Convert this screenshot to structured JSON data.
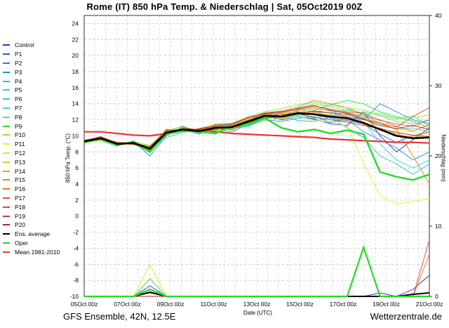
{
  "title": "Rome  (IT)  850 hPa Temp. & Niederschlag | Sat, 05Oct2019 00Z",
  "footer_left": "GFS Ensemble, 42N, 12.5E",
  "footer_right": "Wetterzentrale.de",
  "chart_data": {
    "type": "line",
    "xlabel": "Date (UTC)",
    "ylabel": "850 hPa Temp. (°C)",
    "ylabel_right": "Niederschlag (mm)",
    "x_ticks": [
      "05Oct 00z",
      "07Oct 00z",
      "09Oct 00z",
      "11Oct 00z",
      "13Oct 00z",
      "15Oct 00z",
      "17Oct 00z",
      "19Oct 00z",
      "21Oct 00z"
    ],
    "y_ticks": [
      "-10",
      "-8",
      "-6",
      "-4",
      "-2",
      "0",
      "2",
      "4",
      "6",
      "8",
      "10",
      "12",
      "14",
      "16",
      "18",
      "20",
      "22",
      "24"
    ],
    "y_right_ticks": [
      "0",
      "10",
      "20",
      "30",
      "40"
    ],
    "ylim": [
      -10,
      25
    ],
    "ylim_right": [
      0,
      40
    ],
    "grid": true,
    "legend_position": "left",
    "series": [
      {
        "name": "Control",
        "color": "#3333cc",
        "temp": [
          9.3,
          9.6,
          8.8,
          9.2,
          7.9,
          10.6,
          10.9,
          10.4,
          11.0,
          10.8,
          11.6,
          12.5,
          12.0,
          12.4,
          12.1,
          11.5,
          11.3,
          13.0,
          10.0,
          8.0,
          9.5,
          11.0
        ],
        "precip": [
          0,
          0,
          0,
          0,
          1.5,
          0,
          0,
          0,
          0,
          0,
          0,
          0,
          0,
          0,
          0,
          0,
          0,
          0,
          0.5,
          0,
          1,
          3
        ]
      },
      {
        "name": "P1",
        "color": "#3355dd",
        "temp": [
          9.3,
          9.6,
          9.0,
          9.0,
          8.5,
          10.3,
          10.7,
          10.5,
          11.2,
          11.0,
          12.0,
          12.8,
          12.5,
          13.0,
          12.6,
          12.2,
          11.9,
          11.5,
          10.2,
          9.2,
          10.0,
          10.5
        ],
        "precip": [
          0,
          0,
          0,
          0,
          0.5,
          0,
          0,
          0,
          0,
          0,
          0,
          0,
          0,
          0,
          0,
          0,
          0,
          0,
          0,
          0,
          0,
          0
        ]
      },
      {
        "name": "P2",
        "color": "#3377ee",
        "temp": [
          9.4,
          9.8,
          8.9,
          9.1,
          8.2,
          10.5,
          10.8,
          10.2,
          11.1,
          11.2,
          11.8,
          12.3,
          12.4,
          12.8,
          13.1,
          12.9,
          12.7,
          12.0,
          14.0,
          13.0,
          12.0,
          11.5
        ],
        "precip": [
          0,
          0,
          0,
          0,
          0,
          0,
          0,
          0,
          0,
          0,
          0,
          0,
          0,
          0,
          0,
          0,
          0,
          0,
          0,
          0,
          0,
          0
        ]
      },
      {
        "name": "P3",
        "color": "#1199dd",
        "temp": [
          9.2,
          9.5,
          8.8,
          9.3,
          7.5,
          10.0,
          11.0,
          10.6,
          10.8,
          10.5,
          11.5,
          12.0,
          11.8,
          12.2,
          12.4,
          11.7,
          12.1,
          10.5,
          9.5,
          8.5,
          7.0,
          8.0
        ],
        "precip": [
          0,
          0,
          0,
          0,
          0,
          0,
          0,
          0,
          0,
          0,
          0,
          0,
          0,
          0,
          0,
          0,
          0,
          0,
          0,
          0,
          0,
          0
        ]
      },
      {
        "name": "P4",
        "color": "#22bbdd",
        "temp": [
          9.5,
          9.7,
          9.1,
          9.0,
          8.0,
          10.4,
          10.6,
          10.8,
          11.3,
          10.9,
          11.2,
          12.1,
          12.6,
          11.9,
          11.8,
          12.3,
          11.0,
          9.8,
          7.5,
          6.5,
          5.2,
          6.5
        ],
        "precip": [
          0,
          0,
          0,
          0,
          0,
          0,
          0,
          0,
          0,
          0,
          0,
          0,
          0,
          0,
          0,
          0,
          0,
          0,
          0,
          0,
          0,
          0
        ]
      },
      {
        "name": "P5",
        "color": "#33ccdd",
        "temp": [
          9.1,
          9.4,
          8.7,
          9.4,
          8.3,
          9.8,
          10.4,
          10.9,
          10.6,
          11.1,
          11.4,
          11.9,
          12.2,
          12.5,
          12.0,
          11.6,
          12.4,
          11.8,
          9.0,
          7.0,
          6.0,
          7.0
        ],
        "precip": [
          0,
          0,
          0,
          0,
          0,
          0,
          0,
          0,
          0,
          0,
          0,
          0,
          0,
          0,
          0,
          0,
          0,
          0,
          0,
          0,
          0,
          0
        ]
      },
      {
        "name": "P6",
        "color": "#33ccbb",
        "temp": [
          9.3,
          9.9,
          9.2,
          8.9,
          8.6,
          10.2,
          11.1,
          10.3,
          11.4,
          11.5,
          12.2,
          12.7,
          13.0,
          12.7,
          12.2,
          12.6,
          12.8,
          12.3,
          11.5,
          10.8,
          11.0,
          10.5
        ],
        "precip": [
          0,
          0,
          0,
          0,
          0,
          0,
          0,
          0,
          0,
          0,
          0,
          0,
          0,
          0,
          0,
          0,
          0,
          0,
          0,
          0,
          0,
          0
        ]
      },
      {
        "name": "P7",
        "color": "#44ddaa",
        "temp": [
          9.4,
          9.5,
          9.0,
          9.2,
          8.4,
          10.8,
          10.5,
          10.7,
          10.9,
          11.3,
          11.7,
          12.4,
          12.9,
          13.3,
          13.0,
          12.8,
          13.3,
          12.8,
          12.5,
          11.8,
          11.5,
          12.0
        ],
        "precip": [
          0,
          0,
          0,
          0,
          0,
          0,
          0,
          0,
          0,
          0,
          0,
          0,
          0,
          0,
          0,
          0,
          0,
          0,
          0,
          0,
          0,
          0
        ]
      },
      {
        "name": "P8",
        "color": "#44ee88",
        "temp": [
          9.2,
          9.8,
          8.9,
          9.1,
          8.1,
          10.1,
          10.9,
          10.6,
          11.0,
          10.7,
          11.9,
          12.6,
          12.7,
          13.5,
          14.0,
          13.6,
          13.2,
          12.9,
          12.8,
          12.2,
          12.5,
          11.2
        ],
        "precip": [
          0,
          0,
          0,
          0,
          0,
          0,
          0,
          0,
          0,
          0,
          0,
          0,
          0,
          0,
          0,
          0,
          0,
          0,
          0,
          0,
          0,
          0
        ]
      },
      {
        "name": "P9",
        "color": "#22dd22",
        "temp": [
          9.3,
          9.7,
          9.1,
          9.0,
          8.7,
          10.6,
          11.2,
          10.4,
          10.7,
          11.0,
          11.3,
          12.2,
          12.3,
          12.6,
          13.2,
          13.9,
          14.4,
          14.0,
          13.0,
          12.4,
          11.8,
          11.0
        ],
        "precip": [
          0,
          0,
          0,
          0,
          2.5,
          0,
          0,
          0,
          0,
          0,
          0,
          0,
          0,
          0,
          0,
          0,
          0,
          0,
          0,
          0,
          0,
          0
        ]
      },
      {
        "name": "P10",
        "color": "#88ee22",
        "temp": [
          9.5,
          9.6,
          8.8,
          9.3,
          8.8,
          10.7,
          10.6,
          10.9,
          11.5,
          11.6,
          12.4,
          13.0,
          13.4,
          13.9,
          14.2,
          13.8,
          13.5,
          13.2,
          12.6,
          12.1,
          12.3,
          12.6
        ],
        "precip": [
          0,
          0,
          0,
          0,
          0,
          0,
          0,
          0,
          0,
          0,
          0,
          0,
          0,
          0,
          0,
          0,
          0,
          0,
          0,
          0,
          0,
          0
        ]
      },
      {
        "name": "P11",
        "color": "#eeee22",
        "temp": [
          9.1,
          9.4,
          9.0,
          9.2,
          8.2,
          10.3,
          10.8,
          10.5,
          10.6,
          10.9,
          11.6,
          12.0,
          12.1,
          12.4,
          11.9,
          11.8,
          11.2,
          6.5,
          2.5,
          1.5,
          1.8,
          2.2
        ],
        "precip": [
          0,
          0,
          0,
          0,
          0,
          0,
          0,
          0,
          0,
          0,
          0,
          0,
          0,
          0,
          0,
          0,
          0,
          0,
          0,
          0,
          0,
          0
        ]
      },
      {
        "name": "P12",
        "color": "#eedd22",
        "temp": [
          9.4,
          9.9,
          9.2,
          9.0,
          8.5,
          10.5,
          10.7,
          10.8,
          11.2,
          11.4,
          12.1,
          12.5,
          12.8,
          13.1,
          12.9,
          12.4,
          12.0,
          11.8,
          11.3,
          10.9,
          10.5,
          10.2
        ],
        "precip": [
          0,
          0,
          0,
          0,
          4.5,
          0,
          0,
          0,
          0,
          0,
          0,
          0,
          0,
          0,
          0,
          0,
          0,
          0,
          0,
          0,
          0,
          0
        ]
      },
      {
        "name": "P13",
        "color": "#ddcc22",
        "temp": [
          9.2,
          9.5,
          8.8,
          9.1,
          8.0,
          10.2,
          11.0,
          10.3,
          10.9,
          11.1,
          11.5,
          12.3,
          12.6,
          12.9,
          13.4,
          12.7,
          12.3,
          11.4,
          10.8,
          10.5,
          10.0,
          9.8
        ],
        "precip": [
          0,
          0,
          0,
          0,
          0,
          0,
          0,
          0,
          0,
          0,
          0,
          0,
          0,
          0,
          0,
          0,
          0,
          0,
          0,
          0,
          0,
          0
        ]
      },
      {
        "name": "P14",
        "color": "#ddaa11",
        "temp": [
          9.3,
          9.6,
          9.0,
          9.3,
          8.3,
          10.4,
          10.5,
          10.9,
          11.3,
          11.0,
          11.8,
          12.4,
          12.2,
          12.7,
          13.0,
          12.5,
          12.6,
          12.2,
          11.0,
          10.2,
          9.8,
          10.5
        ],
        "precip": [
          0,
          0,
          0,
          0,
          0,
          0,
          0,
          0,
          0,
          0,
          0,
          0,
          0,
          0,
          0,
          0,
          0,
          0,
          0,
          0,
          0,
          0
        ]
      },
      {
        "name": "P15",
        "color": "#dd8811",
        "temp": [
          9.5,
          9.7,
          9.1,
          8.9,
          8.6,
          10.7,
          10.8,
          10.5,
          11.1,
          11.4,
          12.2,
          12.9,
          13.1,
          13.6,
          14.4,
          14.0,
          13.5,
          12.6,
          11.6,
          10.8,
          7.5,
          4.0
        ],
        "precip": [
          0,
          0,
          0,
          0,
          0,
          0,
          0,
          0,
          0,
          0,
          0,
          0,
          0,
          0,
          0,
          0,
          0,
          0,
          0,
          0,
          0,
          0
        ]
      },
      {
        "name": "P16",
        "color": "#dd7722",
        "temp": [
          9.1,
          9.8,
          8.9,
          9.2,
          8.4,
          10.0,
          11.1,
          10.7,
          10.8,
          11.2,
          11.9,
          12.6,
          12.5,
          13.2,
          13.5,
          13.1,
          12.9,
          12.5,
          12.0,
          11.2,
          10.6,
          11.4
        ],
        "precip": [
          0,
          0,
          0,
          0,
          0,
          0,
          0,
          0,
          0,
          0,
          0,
          0,
          0,
          0,
          0,
          0,
          0,
          0,
          0,
          0,
          0,
          6
        ]
      },
      {
        "name": "P17",
        "color": "#dd5522",
        "temp": [
          9.4,
          9.5,
          9.0,
          9.0,
          8.1,
          10.6,
          10.6,
          10.6,
          11.4,
          11.3,
          12.0,
          12.7,
          12.9,
          13.3,
          13.7,
          13.3,
          13.0,
          12.8,
          11.9,
          11.5,
          11.2,
          12.0
        ],
        "precip": [
          0,
          0,
          0,
          0,
          0,
          0,
          0,
          0,
          0,
          0,
          0,
          0,
          0,
          0,
          0,
          0,
          0,
          0,
          0,
          0,
          0,
          0
        ]
      },
      {
        "name": "P18",
        "color": "#dd4433",
        "temp": [
          9.2,
          9.7,
          9.2,
          9.1,
          8.7,
          10.3,
          10.9,
          10.8,
          11.0,
          10.8,
          11.7,
          12.2,
          12.4,
          12.9,
          13.0,
          12.9,
          12.4,
          12.0,
          11.6,
          11.1,
          12.4,
          13.5
        ],
        "precip": [
          0,
          0,
          0,
          0,
          0,
          0,
          0,
          0,
          0,
          0,
          0,
          0,
          0,
          0,
          0,
          0,
          0,
          0,
          0,
          0,
          0,
          8
        ]
      },
      {
        "name": "P19",
        "color": "#cc3344",
        "temp": [
          9.3,
          9.6,
          8.8,
          9.3,
          8.2,
          10.5,
          10.7,
          10.4,
          10.9,
          11.1,
          11.6,
          12.5,
          12.7,
          12.8,
          12.3,
          12.0,
          11.7,
          11.3,
          10.9,
          10.4,
          10.1,
          9.9
        ],
        "precip": [
          0,
          0,
          0,
          0,
          0,
          0,
          0,
          0,
          0,
          0,
          0,
          0,
          0,
          0,
          0,
          0,
          0,
          0,
          0,
          0,
          0,
          0
        ]
      },
      {
        "name": "P20",
        "color": "#aa2233",
        "temp": [
          9.4,
          9.9,
          9.1,
          9.0,
          8.5,
          10.8,
          10.5,
          10.9,
          11.2,
          11.5,
          12.3,
          12.8,
          13.0,
          13.4,
          13.8,
          13.2,
          12.8,
          12.1,
          11.3,
          10.9,
          11.3,
          10.8
        ],
        "precip": [
          0,
          0,
          0,
          0,
          0,
          0,
          0,
          0,
          0,
          0,
          0,
          0,
          0,
          0,
          0,
          0,
          0,
          0,
          0,
          0,
          0,
          0
        ]
      },
      {
        "name": "Ens. average",
        "color": "#000000",
        "temp": [
          9.3,
          9.7,
          9.0,
          9.1,
          8.4,
          10.4,
          10.8,
          10.6,
          11.0,
          11.1,
          11.8,
          12.5,
          12.4,
          12.8,
          12.7,
          12.4,
          12.2,
          11.6,
          10.8,
          10.0,
          9.7,
          9.8
        ],
        "precip": [
          0,
          0,
          0,
          0,
          0.6,
          0,
          0,
          0,
          0,
          0,
          0,
          0,
          0,
          0,
          0,
          0,
          0,
          0,
          0,
          0,
          0.3,
          0.5
        ]
      },
      {
        "name": "Oper",
        "color": "#22dd22",
        "temp": [
          9.2,
          9.6,
          8.9,
          9.2,
          8.0,
          10.2,
          10.6,
          10.5,
          10.3,
          11.2,
          11.5,
          12.2,
          11.0,
          10.5,
          10.8,
          10.3,
          10.7,
          10.2,
          5.5,
          4.9,
          4.5,
          5.2
        ],
        "precip": [
          0,
          0,
          0,
          0,
          1.0,
          0,
          0,
          0,
          0,
          0,
          0,
          0,
          0,
          0,
          0,
          0,
          0,
          7,
          0,
          0,
          0,
          0
        ]
      },
      {
        "name": "Mean 1981-2010",
        "color": "#ee3333",
        "temp": [
          10.5,
          10.5,
          10.3,
          10.1,
          10.0,
          10.3,
          10.6,
          10.8,
          10.5,
          10.3,
          10.2,
          10.1,
          10.0,
          9.9,
          9.8,
          9.6,
          9.5,
          9.4,
          9.3,
          9.2,
          9.2,
          9.1
        ],
        "precip": []
      }
    ]
  }
}
